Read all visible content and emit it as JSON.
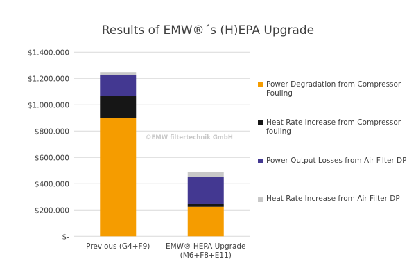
{
  "chart_data": {
    "type": "bar",
    "stacked": true,
    "title": "Results of EMW®´s (H)EPA Upgrade",
    "categories": [
      "Previous (G4+F9)",
      "EMW® HEPA Upgrade (M6+F8+E11)"
    ],
    "series": [
      {
        "name": "Power Degradation from Compressor Fouling",
        "color": "#F59C00",
        "values": [
          900000,
          224000
        ]
      },
      {
        "name": "Heat Rate Increase from Compressor fouling",
        "color": "#161616",
        "values": [
          170000,
          25000
        ]
      },
      {
        "name": "Power Output Losses from Air Filter DP",
        "color": "#433891",
        "values": [
          158000,
          204000
        ]
      },
      {
        "name": "Heat Rate Increase from Air Filter DP",
        "color": "#C8C8C8",
        "values": [
          20000,
          33000
        ]
      }
    ],
    "ylim": [
      0,
      1400000
    ],
    "yticks": [
      0,
      200000,
      400000,
      600000,
      800000,
      1000000,
      1200000,
      1400000
    ],
    "ytick_labels": [
      "$-",
      "$200.000",
      "$400.000",
      "$600.000",
      "$800.000",
      "$1.000.000",
      "$1.200.000",
      "$1.400.000"
    ],
    "grid": true,
    "legend_position": "right",
    "xlabel": "",
    "ylabel": ""
  },
  "watermark": "©EMW filtertechnik GmbH"
}
